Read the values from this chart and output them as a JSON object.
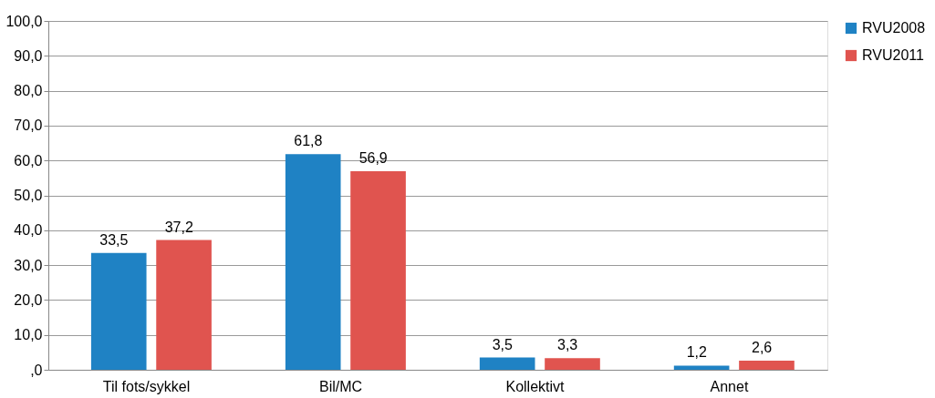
{
  "chart_data": {
    "type": "bar",
    "categories": [
      "Til fots/sykkel",
      "Bil/MC",
      "Kollektivt",
      "Annet"
    ],
    "series": [
      {
        "name": "RVU2008",
        "color": "#1f82c4",
        "values": [
          33.5,
          61.8,
          3.5,
          1.2
        ],
        "value_labels": [
          "33,5",
          "61,8",
          "3,5",
          "1,2"
        ]
      },
      {
        "name": "RVU2011",
        "color": "#e0544f",
        "values": [
          37.2,
          56.9,
          3.3,
          2.6
        ],
        "value_labels": [
          "37,2",
          "56,9",
          "3,3",
          "2,6"
        ]
      }
    ],
    "ylim": [
      0,
      100
    ],
    "yticks": [
      {
        "value": 0,
        "label": ",0"
      },
      {
        "value": 10,
        "label": "10,0"
      },
      {
        "value": 20,
        "label": "20,0"
      },
      {
        "value": 30,
        "label": "30,0"
      },
      {
        "value": 40,
        "label": "40,0"
      },
      {
        "value": 50,
        "label": "50,0"
      },
      {
        "value": 60,
        "label": "60,0"
      },
      {
        "value": 70,
        "label": "70,0"
      },
      {
        "value": 80,
        "label": "80,0"
      },
      {
        "value": 90,
        "label": "90,0"
      },
      {
        "value": 100,
        "label": "100,0"
      }
    ],
    "grid": "y",
    "legend": "right"
  }
}
